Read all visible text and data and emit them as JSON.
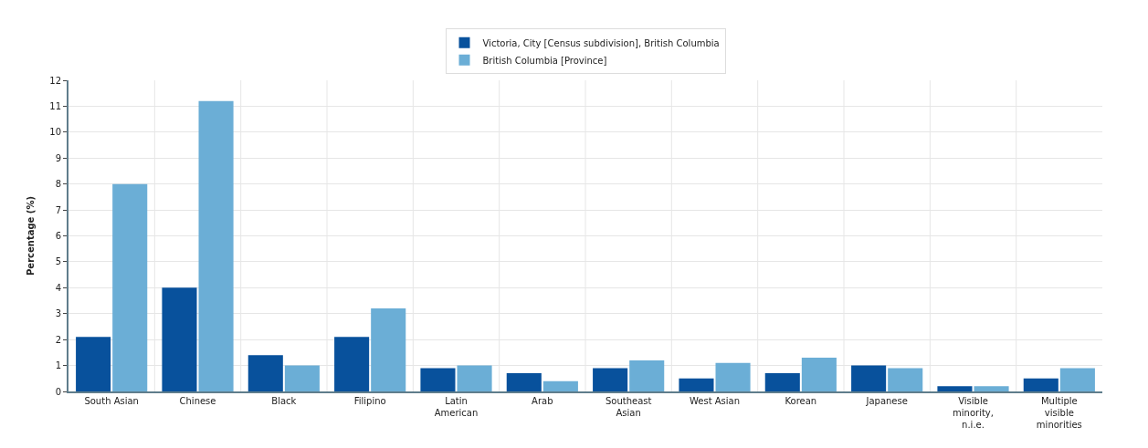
{
  "chart_data": {
    "type": "bar",
    "ylabel": "Percentage (%)",
    "categories": [
      "South Asian",
      "Chinese",
      "Black",
      "Filipino",
      "Latin American",
      "Arab",
      "Southeast Asian",
      "West Asian",
      "Korean",
      "Japanese",
      "Visible minority, n.i.e.",
      "Multiple visible minorities"
    ],
    "series": [
      {
        "name": "Victoria, City [Census subdivision], British Columbia",
        "color": "#08519c",
        "values": [
          2.1,
          4.0,
          1.4,
          2.1,
          0.9,
          0.7,
          0.9,
          0.5,
          0.7,
          1.0,
          0.2,
          0.5
        ]
      },
      {
        "name": "British Columbia [Province]",
        "color": "#6baed6",
        "values": [
          8.0,
          11.2,
          1.0,
          3.2,
          1.0,
          0.4,
          1.2,
          1.1,
          1.3,
          0.9,
          0.2,
          0.9
        ]
      }
    ],
    "ylim": [
      0,
      12
    ],
    "yticks": [
      0,
      1,
      2,
      3,
      4,
      5,
      6,
      7,
      8,
      9,
      10,
      11,
      12
    ],
    "grid": true,
    "legend": "top"
  }
}
